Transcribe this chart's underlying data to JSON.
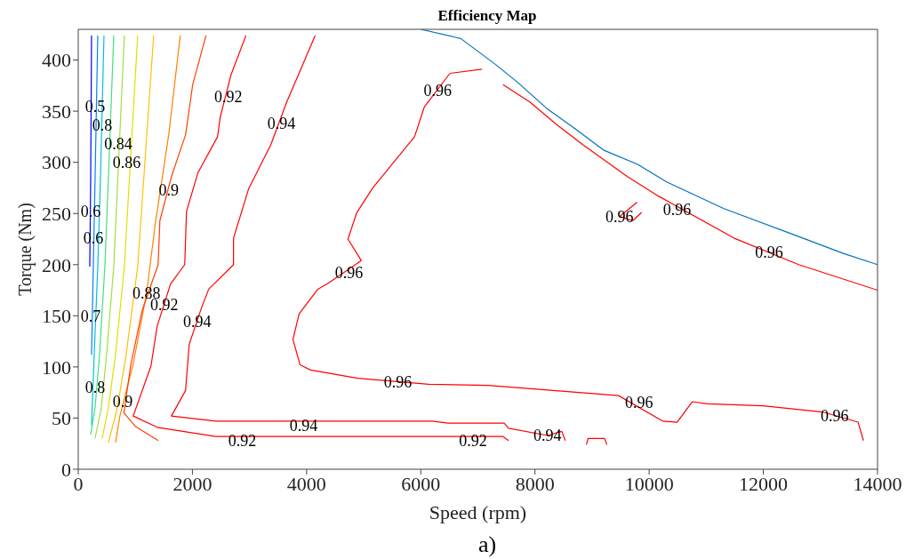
{
  "chart_data": {
    "type": "line",
    "title": "Efficiency Map",
    "xlabel": "Speed (rpm)",
    "ylabel": "Torque (Nm)",
    "xlim": [
      0,
      14000
    ],
    "xticks": [
      0,
      2000,
      4000,
      6000,
      8000,
      10000,
      12000,
      14000
    ],
    "ylim": [
      0,
      430
    ],
    "yticks": [
      0,
      50,
      100,
      150,
      200,
      250,
      300,
      350,
      400
    ],
    "grid": false,
    "series": [
      {
        "color": "#0000ff",
        "x": [
          233,
          218,
          202
        ],
        "values": [
          424,
          284,
          198
        ]
      },
      {
        "color": "#0080ff",
        "x": [
          342,
          295,
          264,
          233
        ],
        "values": [
          424,
          284,
          198,
          112
        ]
      },
      {
        "color": "#00c0e0",
        "x": [
          451,
          389,
          342,
          280,
          233
        ],
        "values": [
          424,
          284,
          198,
          112,
          43
        ]
      },
      {
        "color": "#40e080",
        "x": [
          622,
          528,
          466,
          373,
          295,
          218
        ],
        "values": [
          424,
          284,
          198,
          112,
          60,
          34
        ]
      },
      {
        "color": "#a0e040",
        "x": [
          808,
          622,
          497,
          404,
          295
        ],
        "values": [
          424,
          198,
          112,
          60,
          30
        ]
      },
      {
        "color": "#e0e000",
        "x": [
          1041,
          808,
          653,
          528,
          420
        ],
        "values": [
          424,
          198,
          112,
          60,
          30
        ]
      },
      {
        "color": "#ffc000",
        "x": [
          1321,
          1041,
          839,
          684,
          528
        ],
        "values": [
          424,
          198,
          112,
          60,
          26
        ]
      },
      {
        "color": "#ff8000",
        "x": [
          1787,
          1585,
          1352,
          1197,
          963,
          730,
          653
        ],
        "values": [
          424,
          327,
          241,
          172,
          103,
          52,
          26
        ]
      },
      {
        "color": "#ff4000",
        "x": [
          2238,
          2005,
          1880,
          1632,
          1430,
          1399,
          1119,
          917,
          800,
          1000,
          1400
        ],
        "values": [
          424,
          376,
          327,
          286,
          243,
          200,
          155,
          101,
          55,
          42,
          28
        ]
      },
      {
        "color": "#ff0000",
        "x": [
          2937,
          2673,
          2486,
          2440,
          2098,
          1896,
          1865,
          1616,
          1383,
          1274,
          963,
          1383,
          2409,
          6558,
          7440,
          7537
        ],
        "values": [
          424,
          385,
          344,
          325,
          290,
          252,
          200,
          181,
          140,
          101,
          52,
          41,
          32,
          32,
          32,
          28
        ]
      },
      {
        "color": "#ff0000",
        "x": [
          4150,
          3652,
          3372,
          2984,
          2720,
          2720,
          2285,
          2160,
          1943,
          1880,
          1632,
          2409,
          6200,
          6480,
          7180,
          7460,
          7537,
          8220,
          8469,
          8531
        ],
        "values": [
          424,
          359,
          317,
          274,
          226,
          200,
          176,
          158,
          122,
          77,
          52,
          47,
          47,
          45,
          45,
          45,
          40,
          33,
          37,
          28
        ]
      },
      {
        "color": "#ff0000",
        "x": [
          8900,
          8930,
          9220,
          9260
        ],
        "values": [
          24,
          30,
          30,
          24
        ]
      },
      {
        "color": "#ff0000",
        "x": [
          7071,
          6511,
          6061,
          5890,
          5159,
          4880,
          4724,
          4957,
          4382,
          4196,
          3869,
          3761,
          3885,
          4071,
          4895,
          6138,
          7180,
          9464,
          10241,
          10490,
          10754,
          11018,
          11997,
          13038,
          13660,
          13753
        ],
        "values": [
          391,
          387,
          354,
          325,
          275,
          251,
          225,
          204,
          182,
          176,
          152,
          127,
          102,
          97,
          89,
          83,
          82,
          72,
          47,
          46,
          66,
          64,
          62,
          56,
          46,
          28
        ]
      },
      {
        "color": "#ff0000",
        "x": [
          7440,
          7910,
          8376,
          8842,
          9619,
          10163,
          11484,
          12618,
          14000
        ],
        "values": [
          376,
          359,
          337,
          317,
          286,
          267,
          226,
          200,
          175
        ]
      },
      {
        "color": "#ff0000",
        "x": [
          9790,
          9479,
          9713,
          9868
        ],
        "values": [
          261,
          247,
          243,
          251
        ]
      },
      {
        "color": "#0072bd",
        "x": [
          6000,
          6700,
          7300,
          7700,
          8200,
          8700,
          9200,
          9800,
          10300,
          11300,
          12400,
          13400,
          14000
        ],
        "values": [
          430,
          421,
          396,
          378,
          353,
          333,
          312,
          298,
          281,
          255,
          232,
          211,
          200
        ]
      }
    ],
    "annotations": [
      {
        "text": "0.5",
        "x": 295,
        "y": 354
      },
      {
        "text": "0.6",
        "x": 218,
        "y": 252
      },
      {
        "text": "0.6",
        "x": 264,
        "y": 226
      },
      {
        "text": "0.7",
        "x": 218,
        "y": 149
      },
      {
        "text": "0.8",
        "x": 295,
        "y": 80
      },
      {
        "text": "0.8",
        "x": 420,
        "y": 336
      },
      {
        "text": "0.84",
        "x": 700,
        "y": 318
      },
      {
        "text": "0.86",
        "x": 850,
        "y": 300
      },
      {
        "text": "0.88",
        "x": 1197,
        "y": 172
      },
      {
        "text": "0.9",
        "x": 1585,
        "y": 273
      },
      {
        "text": "0.9",
        "x": 777,
        "y": 66
      },
      {
        "text": "0.92",
        "x": 2626,
        "y": 364
      },
      {
        "text": "0.92",
        "x": 1507,
        "y": 161
      },
      {
        "text": "0.92",
        "x": 2875,
        "y": 28
      },
      {
        "text": "0.92",
        "x": 6915,
        "y": 28
      },
      {
        "text": "0.94",
        "x": 3559,
        "y": 338
      },
      {
        "text": "0.94",
        "x": 2082,
        "y": 144
      },
      {
        "text": "0.94",
        "x": 3947,
        "y": 43
      },
      {
        "text": "0.94",
        "x": 8220,
        "y": 33
      },
      {
        "text": "0.96",
        "x": 6294,
        "y": 370
      },
      {
        "text": "0.96",
        "x": 4740,
        "y": 192
      },
      {
        "text": "0.96",
        "x": 5600,
        "y": 85
      },
      {
        "text": "0.96",
        "x": 9479,
        "y": 247
      },
      {
        "text": "0.96",
        "x": 10490,
        "y": 254
      },
      {
        "text": "0.96",
        "x": 12100,
        "y": 212
      },
      {
        "text": "0.96",
        "x": 9821,
        "y": 65
      },
      {
        "text": "0.96",
        "x": 13250,
        "y": 52
      },
      "a)"
    ]
  }
}
